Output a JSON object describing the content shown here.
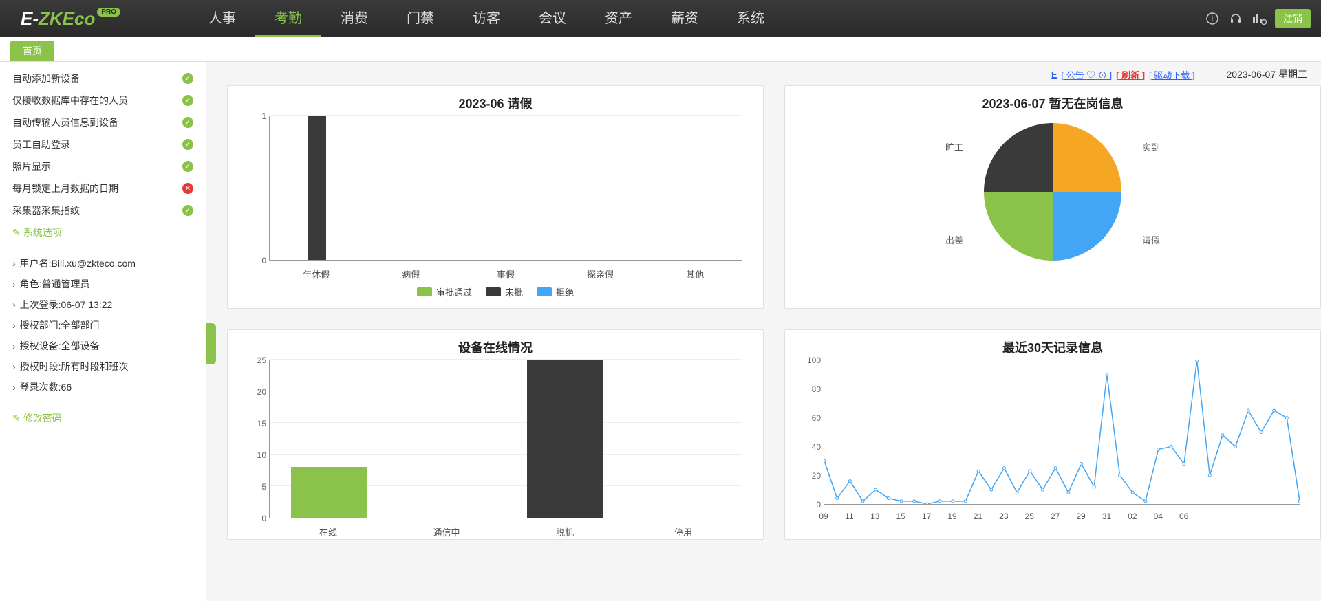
{
  "brand": {
    "e": "E-",
    "zk": "ZK",
    "eco": "Eco",
    "pro": "PRO"
  },
  "nav": {
    "items": [
      "人事",
      "考勤",
      "消费",
      "门禁",
      "访客",
      "会议",
      "资产",
      "薪资",
      "系统"
    ],
    "active_index": 1
  },
  "logout_label": "注销",
  "tab_home": "首页",
  "settings": [
    {
      "label": "自动添加新设备",
      "ok": true
    },
    {
      "label": "仅接收数据库中存在的人员",
      "ok": true
    },
    {
      "label": "自动传输人员信息到设备",
      "ok": true
    },
    {
      "label": "员工自助登录",
      "ok": true
    },
    {
      "label": "照片显示",
      "ok": true
    },
    {
      "label": "每月锁定上月数据的日期",
      "ok": false
    },
    {
      "label": "采集器采集指纹",
      "ok": true
    }
  ],
  "system_options_link": "系统选项",
  "user_info": [
    "用户名:Bill.xu@zkteco.com",
    "角色:普通管理员",
    "上次登录:06-07 13:22",
    "授权部门:全部部门",
    "授权设备:全部设备",
    "授权时段:所有时段和班次",
    "登录次数:66"
  ],
  "change_pw_link": "修改密码",
  "content_top": {
    "e_prefix": "E",
    "notice": "[ 公告 ",
    "heart": "♡",
    "clock": "⊙",
    "bracket_close": " ]",
    "refresh": "[ 刷新 ]",
    "driver": "[ 驱动下载 ]",
    "date": "2023-06-07 星期三"
  },
  "leave_chart": {
    "title": "2023-06 请假",
    "categories": [
      "年休假",
      "病假",
      "事假",
      "探亲假",
      "其他"
    ],
    "series": [
      {
        "name": "审批通过",
        "color": "#8bc34a",
        "values": [
          0,
          0,
          0,
          0,
          0
        ]
      },
      {
        "name": "未批",
        "color": "#3a3a3a",
        "values": [
          1,
          0,
          0,
          0,
          0
        ]
      },
      {
        "name": "拒绝",
        "color": "#42a5f5",
        "values": [
          0,
          0,
          0,
          0,
          0
        ]
      }
    ],
    "ymax": 1,
    "yticks": [
      0,
      1
    ]
  },
  "pie_chart": {
    "title": "2023-06-07 暂无在岗信息",
    "slices": [
      {
        "label": "实到",
        "color": "#f5a623",
        "pct": 25
      },
      {
        "label": "请假",
        "color": "#42a5f5",
        "pct": 25
      },
      {
        "label": "出差",
        "color": "#8bc34a",
        "pct": 25
      },
      {
        "label": "旷工",
        "color": "#3a3a3a",
        "pct": 25
      }
    ]
  },
  "device_chart": {
    "title": "设备在线情况",
    "categories": [
      "在线",
      "通信中",
      "脱机",
      "停用"
    ],
    "values": [
      8,
      0,
      25,
      0
    ],
    "colors": [
      "#8bc34a",
      "#8bc34a",
      "#3a3a3a",
      "#8bc34a"
    ],
    "ymax": 25,
    "yticks": [
      0,
      5,
      10,
      15,
      20,
      25
    ]
  },
  "line_chart": {
    "title": "最近30天记录信息",
    "ymax": 100,
    "yticks": [
      0,
      20,
      40,
      60,
      80,
      100
    ],
    "x_labels": [
      "09",
      "11",
      "13",
      "15",
      "17",
      "19",
      "21",
      "23",
      "25",
      "27",
      "29",
      "31",
      "02",
      "04",
      "06"
    ],
    "x_step": 2,
    "color": "#42a5f5",
    "values": [
      30,
      4,
      16,
      2,
      10,
      4,
      2,
      2,
      0,
      2,
      2,
      2,
      23,
      10,
      25,
      8,
      23,
      10,
      25,
      8,
      28,
      12,
      90,
      20,
      8,
      2,
      38,
      40,
      28,
      100,
      20,
      48,
      40,
      65,
      50,
      65,
      60,
      2
    ]
  }
}
